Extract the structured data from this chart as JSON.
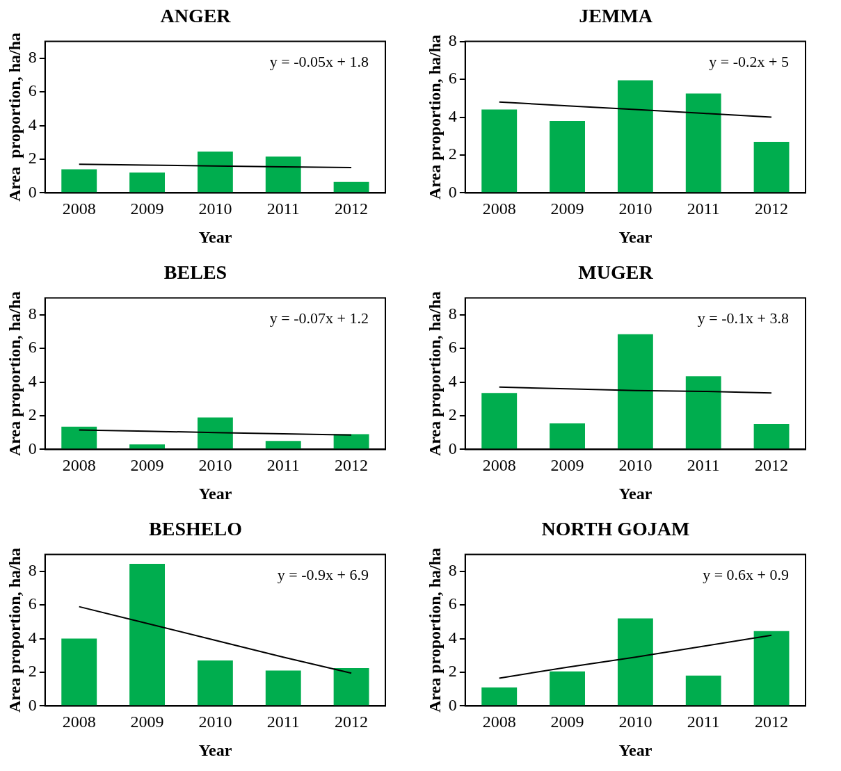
{
  "chart_data": [
    {
      "type": "bar",
      "title": "ANGER",
      "xlabel": "Year",
      "ylabel": "Area  proportion, ha/ha",
      "categories": [
        "2008",
        "2009",
        "2010",
        "2011",
        "2012"
      ],
      "ylim": [
        0,
        9
      ],
      "yticks": [
        0,
        2,
        4,
        6,
        8
      ],
      "grid": false,
      "legend": false,
      "marker": "none",
      "series": [
        {
          "color": "#00ad4e",
          "values": [
            1.4,
            1.2,
            2.45,
            2.15,
            0.65
          ]
        },
        {
          "type": "line",
          "color": "#000000",
          "line_style": "solid",
          "values": [
            1.7,
            1.65,
            1.6,
            1.55,
            1.5
          ]
        }
      ],
      "annotations": [
        "y = -0.05x + 1.8"
      ]
    },
    {
      "type": "bar",
      "title": "JEMMA",
      "xlabel": "Year",
      "ylabel": "Area proportion, ha/ha",
      "categories": [
        "2008",
        "2009",
        "2010",
        "2011",
        "2012"
      ],
      "ylim": [
        0,
        8
      ],
      "yticks": [
        0,
        2,
        4,
        6,
        8
      ],
      "grid": false,
      "legend": false,
      "marker": "none",
      "series": [
        {
          "color": "#00ad4e",
          "values": [
            4.4,
            3.8,
            5.95,
            5.25,
            2.7
          ]
        },
        {
          "type": "line",
          "color": "#000000",
          "line_style": "solid",
          "values": [
            4.8,
            4.6,
            4.4,
            4.2,
            4.0
          ]
        }
      ],
      "annotations": [
        "y = -0.2x + 5"
      ]
    },
    {
      "type": "bar",
      "title": "BELES",
      "xlabel": "Year",
      "ylabel": "Area proportion, ha/ha",
      "categories": [
        "2008",
        "2009",
        "2010",
        "2011",
        "2012"
      ],
      "ylim": [
        0,
        9
      ],
      "yticks": [
        0,
        2,
        4,
        6,
        8
      ],
      "grid": false,
      "legend": false,
      "marker": "none",
      "series": [
        {
          "color": "#00ad4e",
          "values": [
            1.35,
            0.3,
            1.9,
            0.5,
            0.9
          ]
        },
        {
          "type": "line",
          "color": "#000000",
          "line_style": "solid",
          "values": [
            1.15,
            1.08,
            1.0,
            0.93,
            0.85
          ]
        }
      ],
      "annotations": [
        "y = -0.07x + 1.2"
      ]
    },
    {
      "type": "bar",
      "title": "MUGER",
      "xlabel": "Year",
      "ylabel": "Area proportion, ha/ha",
      "categories": [
        "2008",
        "2009",
        "2010",
        "2011",
        "2012"
      ],
      "ylim": [
        0,
        9
      ],
      "yticks": [
        0,
        2,
        4,
        6,
        8
      ],
      "grid": false,
      "legend": false,
      "marker": "none",
      "series": [
        {
          "color": "#00ad4e",
          "values": [
            3.35,
            1.55,
            6.85,
            4.35,
            1.5
          ]
        },
        {
          "type": "line",
          "color": "#000000",
          "line_style": "solid",
          "values": [
            3.7,
            3.6,
            3.5,
            3.45,
            3.35
          ]
        }
      ],
      "annotations": [
        "y = -0.1x + 3.8"
      ]
    },
    {
      "type": "bar",
      "title": "BESHELO",
      "xlabel": "Year",
      "ylabel": "Area proportion, ha/ha",
      "categories": [
        "2008",
        "2009",
        "2010",
        "2011",
        "2012"
      ],
      "ylim": [
        0,
        9
      ],
      "yticks": [
        0,
        2,
        4,
        6,
        8
      ],
      "grid": false,
      "legend": false,
      "marker": "none",
      "series": [
        {
          "color": "#00ad4e",
          "values": [
            4.0,
            8.45,
            2.7,
            2.1,
            2.25
          ]
        },
        {
          "type": "line",
          "color": "#000000",
          "line_style": "solid",
          "values": [
            5.9,
            4.9,
            3.9,
            2.9,
            1.95
          ]
        }
      ],
      "annotations": [
        "y = -0.9x + 6.9"
      ]
    },
    {
      "type": "bar",
      "title": "NORTH GOJAM",
      "xlabel": "Year",
      "ylabel": "Area proportion, ha/ha",
      "categories": [
        "2008",
        "2009",
        "2010",
        "2011",
        "2012"
      ],
      "ylim": [
        0,
        9
      ],
      "yticks": [
        0,
        2,
        4,
        6,
        8
      ],
      "grid": false,
      "legend": false,
      "marker": "none",
      "series": [
        {
          "color": "#00ad4e",
          "values": [
            1.1,
            2.05,
            5.2,
            1.8,
            4.45
          ]
        },
        {
          "type": "line",
          "color": "#000000",
          "line_style": "solid",
          "values": [
            1.65,
            2.3,
            2.9,
            3.55,
            4.2
          ]
        }
      ],
      "annotations": [
        "y = 0.6x + 0.9"
      ]
    }
  ]
}
